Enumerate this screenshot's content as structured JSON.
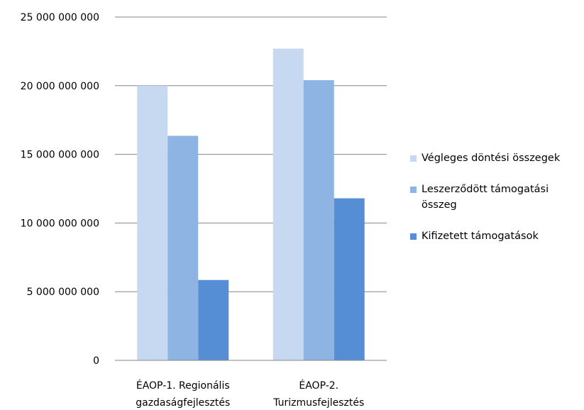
{
  "chart_data": {
    "type": "bar",
    "categories": [
      "ÉAOP-1. Regionális gazdaságfejlesztés",
      "ÉAOP-2. Turizmusfejlesztés"
    ],
    "category_lines": [
      [
        "ÉAOP-1. Regionális",
        "gazdaságfejlesztés"
      ],
      [
        "ÉAOP-2.",
        "Turizmusfejlesztés"
      ]
    ],
    "series": [
      {
        "name": "Végleges döntési összegek",
        "values": [
          20000000000,
          22700000000
        ],
        "color": "#c6d9f1"
      },
      {
        "name": "Leszerződött támogatási összeg",
        "name_lines": [
          "Leszerződött támogatási",
          "összeg"
        ],
        "values": [
          16350000000,
          20400000000
        ],
        "color": "#8eb4e3"
      },
      {
        "name": "Kifizetett támogatások",
        "values": [
          5850000000,
          11800000000
        ],
        "color": "#558ed5"
      }
    ],
    "ylim": [
      0,
      25000000000
    ],
    "yticks": [
      0,
      5000000000,
      10000000000,
      15000000000,
      20000000000,
      25000000000
    ],
    "ytick_labels": [
      "0",
      "5 000 000 000",
      "10 000 000 000",
      "15 000 000 000",
      "20 000 000 000",
      "25 000 000 000"
    ],
    "grid": true,
    "legend_position": "right",
    "title": "",
    "xlabel": "",
    "ylabel": ""
  }
}
